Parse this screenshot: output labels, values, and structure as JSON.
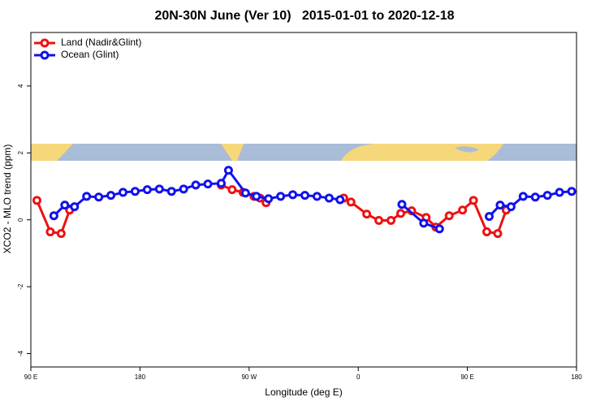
{
  "chart_data": {
    "type": "line",
    "title": "20N-30N June (Ver 10)   2015-01-01 to 2020-12-18",
    "xlabel": "Longitude (deg E)",
    "ylabel": "XCO2 - MLO trend (ppm)",
    "xlim": [
      90,
      540
    ],
    "ylim": [
      -4.4,
      5.6
    ],
    "xticks": [
      {
        "value": 90,
        "label": "90 E"
      },
      180,
      {
        "value": 270,
        "label": "90 W"
      },
      {
        "value": 360,
        "label": "0"
      },
      {
        "value": 450,
        "label": "90 E"
      },
      {
        "value": 540,
        "label": "180"
      }
    ],
    "yticks": [
      -4,
      -2,
      0,
      2,
      4
    ],
    "legend": "top-left",
    "series": [
      {
        "name": "Land (Nadir&Glint)",
        "color": "#ee1111",
        "x": [
          95,
          106,
          115,
          122,
          184,
          247,
          256,
          265,
          274,
          279,
          284,
          316,
          348,
          354,
          367,
          377,
          387,
          395,
          404,
          416,
          424,
          435,
          446,
          455,
          466,
          475,
          482
        ],
        "values": [
          0.58,
          -0.36,
          -0.41,
          0.29,
          null,
          1.04,
          0.9,
          0.82,
          0.7,
          0.65,
          0.51,
          null,
          0.65,
          0.53,
          0.17,
          -0.02,
          -0.02,
          0.19,
          0.27,
          0.07,
          -0.22,
          0.12,
          0.29,
          0.58,
          -0.36,
          -0.41,
          0.29
        ]
      },
      {
        "name": "Ocean (Glint)",
        "color": "#1111ee",
        "x": [
          109,
          118,
          126,
          136,
          146,
          156,
          166,
          176,
          186,
          196,
          206,
          216,
          226,
          236,
          247,
          253,
          267,
          276,
          286,
          296,
          306,
          316,
          326,
          336,
          345,
          370,
          396,
          414,
          427,
          447,
          468,
          477,
          486,
          496,
          506,
          516,
          526,
          536
        ],
        "values": [
          0.12,
          0.44,
          0.39,
          0.7,
          0.68,
          0.73,
          0.82,
          0.85,
          0.9,
          0.92,
          0.85,
          0.92,
          1.04,
          1.07,
          1.09,
          1.48,
          0.8,
          0.7,
          0.63,
          0.7,
          0.75,
          0.73,
          0.7,
          0.65,
          0.6,
          null,
          0.46,
          -0.1,
          -0.27,
          null,
          0.1,
          0.44,
          0.39,
          0.7,
          0.68,
          0.73,
          0.82,
          0.85
        ]
      }
    ]
  }
}
